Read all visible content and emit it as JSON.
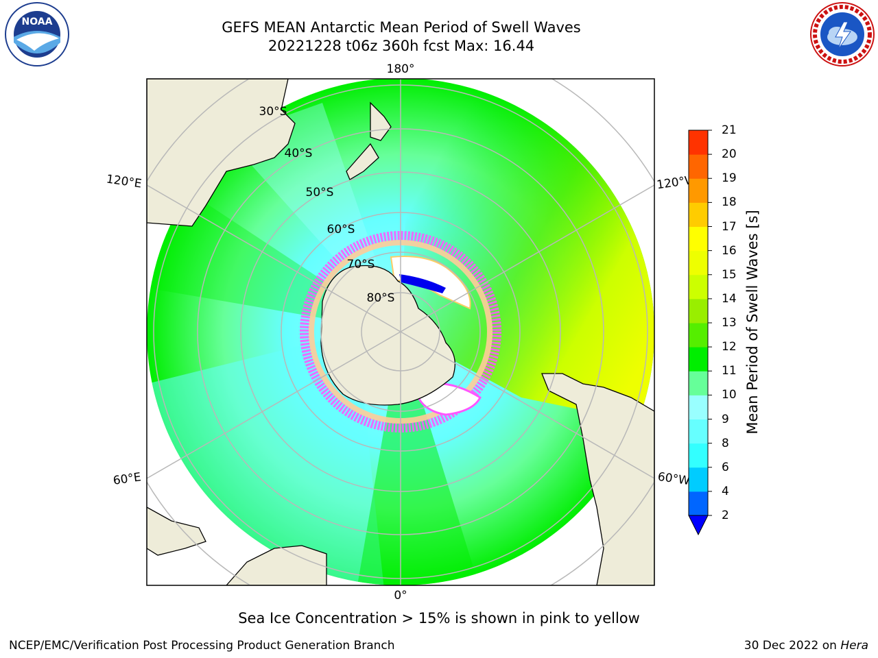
{
  "title": {
    "line1": "GEFS MEAN Antarctic Mean Period of Swell Waves",
    "line2": "20221228 t06z 360h fcst   Max: 16.44"
  },
  "logos": {
    "left_text": "NOAA",
    "left_ring_text": "NATIONAL OCEANIC AND ATMOSPHERIC ADMINISTRATION · U.S. DEPARTMENT OF COMMERCE",
    "right_ring_text": "NATIONAL WEATHER SERVICE"
  },
  "map": {
    "longitude_labels": {
      "top": "180°",
      "bottom": "0°",
      "left_upper": "120°E",
      "left_lower": "60°E",
      "right_upper": "120°W",
      "right_lower": "60°W"
    },
    "latitude_labels": [
      "30°S",
      "40°S",
      "50°S",
      "60°S",
      "70°S",
      "80°S"
    ]
  },
  "colorbar": {
    "label": "Mean Period of Swell Waves [s]",
    "ticks": [
      "2",
      "4",
      "6",
      "8",
      "9",
      "10",
      "11",
      "12",
      "13",
      "14",
      "15",
      "16",
      "17",
      "18",
      "19",
      "20",
      "21"
    ],
    "colors": [
      "#0066ff",
      "#00ccff",
      "#33ffff",
      "#66ffff",
      "#99ffff",
      "#66ff99",
      "#00ee00",
      "#55ee00",
      "#99ee00",
      "#ccff00",
      "#eeff00",
      "#ffff00",
      "#ffcc00",
      "#ff9900",
      "#ff6600",
      "#ff3300",
      "#ff0000"
    ],
    "extend_color": "#0000ff"
  },
  "footnote": "Sea Ice Concentration > 15% is shown in pink to yellow",
  "credit_left": "NCEP/EMC/Verification Post Processing Product Generation Branch",
  "credit_right_date": "30 Dec 2022 on ",
  "credit_right_machine": "Hera"
}
